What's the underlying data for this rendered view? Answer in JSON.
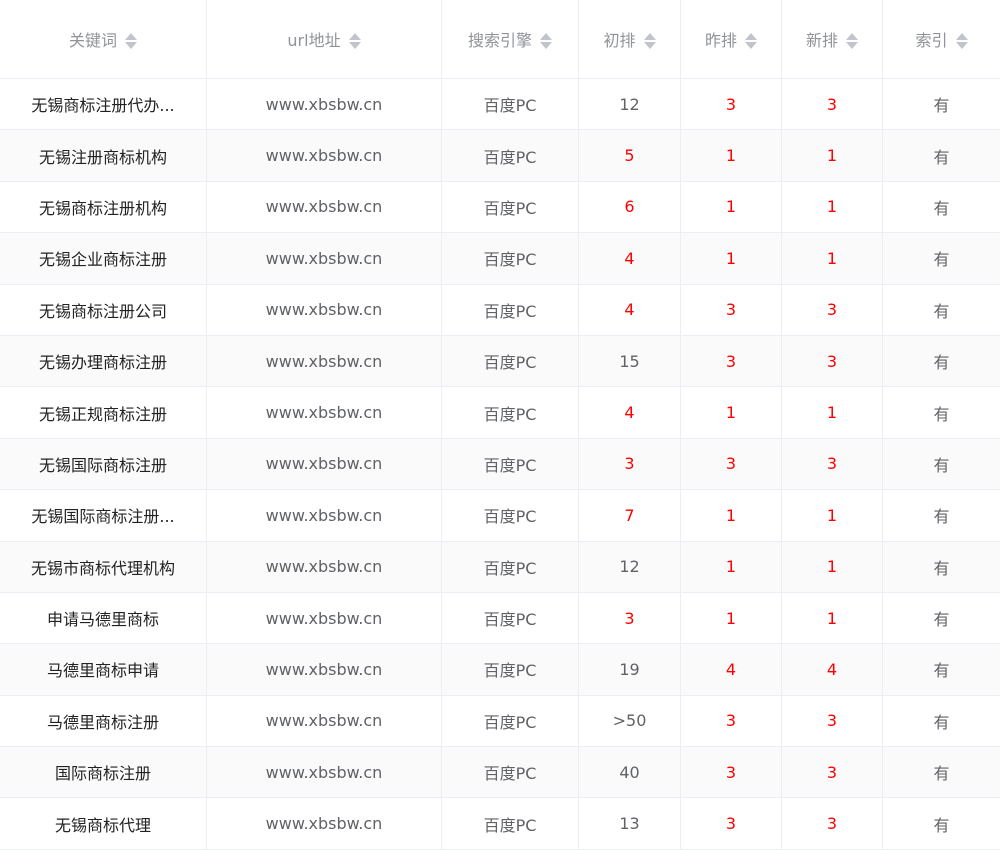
{
  "colors": {
    "accent_red": "#ff0000",
    "text": "#606266",
    "header_text": "#909399"
  },
  "headers": [
    "关键词",
    "url地址",
    "搜索引擎",
    "初排",
    "昨排",
    "新排",
    "索引"
  ],
  "rows": [
    [
      "无锡商标注册代办...",
      "www.xbsbw.cn",
      "百度PC",
      "12",
      "3",
      "3",
      "有"
    ],
    [
      "无锡注册商标机构",
      "www.xbsbw.cn",
      "百度PC",
      "5",
      "1",
      "1",
      "有"
    ],
    [
      "无锡商标注册机构",
      "www.xbsbw.cn",
      "百度PC",
      "6",
      "1",
      "1",
      "有"
    ],
    [
      "无锡企业商标注册",
      "www.xbsbw.cn",
      "百度PC",
      "4",
      "1",
      "1",
      "有"
    ],
    [
      "无锡商标注册公司",
      "www.xbsbw.cn",
      "百度PC",
      "4",
      "3",
      "3",
      "有"
    ],
    [
      "无锡办理商标注册",
      "www.xbsbw.cn",
      "百度PC",
      "15",
      "3",
      "3",
      "有"
    ],
    [
      "无锡正规商标注册",
      "www.xbsbw.cn",
      "百度PC",
      "4",
      "1",
      "1",
      "有"
    ],
    [
      "无锡国际商标注册",
      "www.xbsbw.cn",
      "百度PC",
      "3",
      "3",
      "3",
      "有"
    ],
    [
      "无锡国际商标注册...",
      "www.xbsbw.cn",
      "百度PC",
      "7",
      "1",
      "1",
      "有"
    ],
    [
      "无锡市商标代理机构",
      "www.xbsbw.cn",
      "百度PC",
      "12",
      "1",
      "1",
      "有"
    ],
    [
      "申请马德里商标",
      "www.xbsbw.cn",
      "百度PC",
      "3",
      "1",
      "1",
      "有"
    ],
    [
      "马德里商标申请",
      "www.xbsbw.cn",
      "百度PC",
      "19",
      "4",
      "4",
      "有"
    ],
    [
      "马德里商标注册",
      "www.xbsbw.cn",
      "百度PC",
      ">50",
      "3",
      "3",
      "有"
    ],
    [
      "国际商标注册",
      "www.xbsbw.cn",
      "百度PC",
      "40",
      "3",
      "3",
      "有"
    ],
    [
      "无锡商标代理",
      "www.xbsbw.cn",
      "百度PC",
      "13",
      "3",
      "3",
      "有"
    ]
  ]
}
